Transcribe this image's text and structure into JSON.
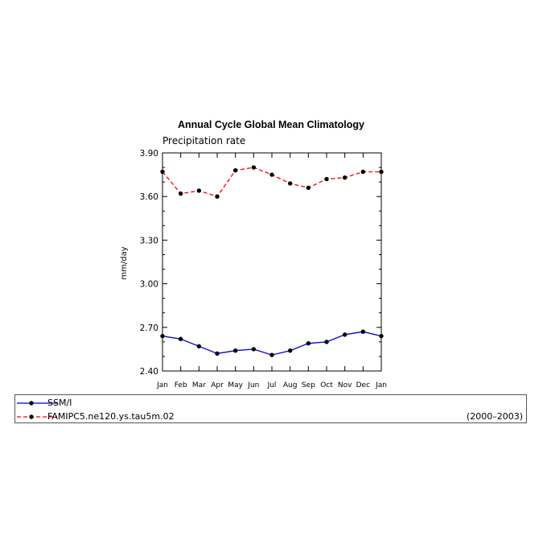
{
  "chart_data": {
    "type": "line",
    "title": "Annual Cycle Global Mean Climatology",
    "subtitle": "Precipitation rate",
    "ylabel": "mm/day",
    "xlabel": "",
    "ylim": [
      2.4,
      3.9
    ],
    "y_ticks": [
      "2.40",
      "2.70",
      "3.00",
      "3.30",
      "3.60",
      "3.90"
    ],
    "categories": [
      "Jan",
      "Feb",
      "Mar",
      "Apr",
      "May",
      "Jun",
      "Jul",
      "Aug",
      "Sep",
      "Oct",
      "Nov",
      "Dec",
      "Jan"
    ],
    "series": [
      {
        "name": "SSM/I",
        "color": "#0000cc",
        "dashed": false,
        "values": [
          2.64,
          2.62,
          2.57,
          2.52,
          2.54,
          2.55,
          2.51,
          2.54,
          2.59,
          2.6,
          2.65,
          2.67,
          2.64
        ]
      },
      {
        "name": "FAMIPC5.ne120.ys.tau5m.02",
        "color": "#ff0000",
        "dashed": true,
        "values": [
          3.77,
          3.62,
          3.64,
          3.6,
          3.78,
          3.8,
          3.75,
          3.69,
          3.66,
          3.72,
          3.73,
          3.77,
          3.77
        ]
      }
    ],
    "period": "(2000–2003)",
    "grid": false,
    "legend_position": "bottom"
  }
}
